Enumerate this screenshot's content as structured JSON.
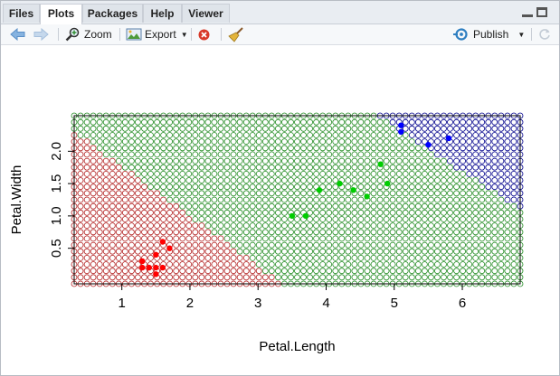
{
  "tabs": [
    {
      "label": "Files",
      "active": false
    },
    {
      "label": "Plots",
      "active": true
    },
    {
      "label": "Packages",
      "active": false
    },
    {
      "label": "Help",
      "active": false
    },
    {
      "label": "Viewer",
      "active": false
    }
  ],
  "toolbar": {
    "zoom_label": "Zoom",
    "export_label": "Export",
    "publish_label": "Publish",
    "icons": [
      "back-arrow-icon",
      "forward-arrow-icon",
      "zoom-icon",
      "export-icon",
      "remove-plot-icon",
      "broom-icon",
      "publish-icon",
      "refresh-icon"
    ]
  },
  "colors": {
    "class1": "#ff0000",
    "class1_grid": "#b22222",
    "class2": "#00cd00",
    "class2_grid": "#228b22",
    "class3": "#0000ff",
    "class3_grid": "#00008b",
    "accent": "#2f7fc1"
  },
  "chart_data": {
    "type": "scatter",
    "xlabel": "Petal.Length",
    "ylabel": "Petal.Width",
    "x_ticks": [
      "1",
      "2",
      "3",
      "4",
      "5",
      "6"
    ],
    "y_ticks": [
      "0.5",
      "1.0",
      "1.5",
      "2.0"
    ],
    "xlim": [
      0.3,
      6.85
    ],
    "ylim": [
      -0.05,
      2.55
    ],
    "background_grid": "decision region shown as open circles colored by predicted class",
    "series": [
      {
        "points": [
          [
            1.4,
            0.2
          ],
          [
            1.5,
            0.2
          ],
          [
            1.6,
            0.2
          ],
          [
            1.3,
            0.2
          ],
          [
            1.3,
            0.3
          ],
          [
            1.5,
            0.1
          ],
          [
            1.5,
            0.4
          ],
          [
            1.6,
            0.6
          ],
          [
            1.7,
            0.5
          ]
        ]
      },
      {
        "points": [
          [
            3.5,
            1.0
          ],
          [
            3.7,
            1.0
          ],
          [
            3.9,
            1.4
          ],
          [
            4.2,
            1.5
          ],
          [
            4.4,
            1.4
          ],
          [
            4.6,
            1.3
          ],
          [
            4.8,
            1.8
          ],
          [
            4.9,
            1.5
          ]
        ]
      },
      {
        "points": [
          [
            5.1,
            2.4
          ],
          [
            5.1,
            2.3
          ],
          [
            5.5,
            2.1
          ],
          [
            5.8,
            2.2
          ]
        ]
      }
    ]
  }
}
